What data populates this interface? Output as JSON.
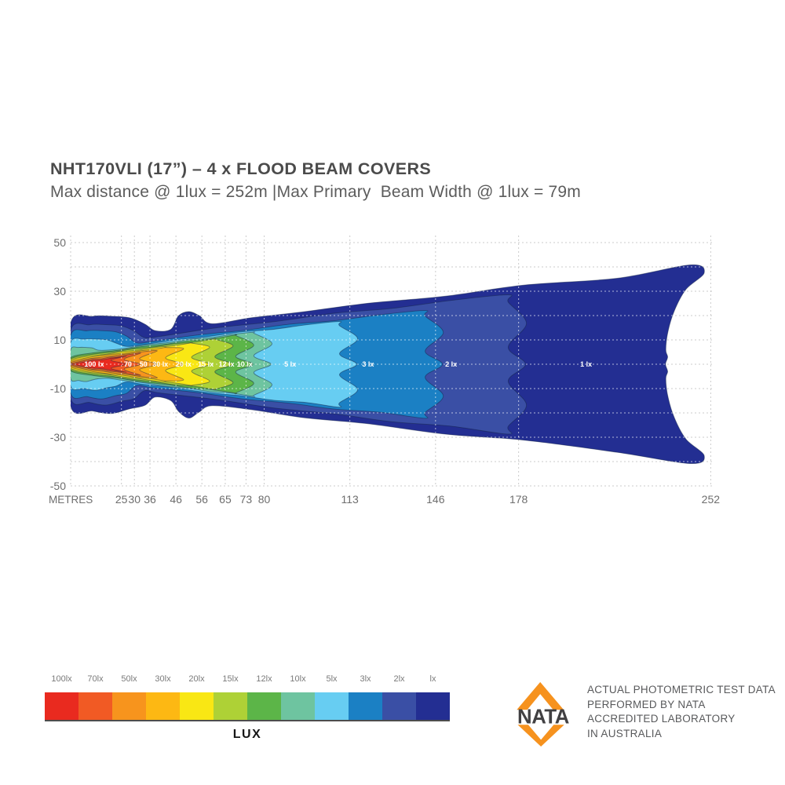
{
  "header": {
    "title": "NHT170VLI (17”) – 4 x FLOOD BEAM COVERS",
    "subtitle": "Max distance @ 1lux = 252m |Max Primary  Beam Width @ 1lux = 79m"
  },
  "chart_data": {
    "type": "area",
    "subtype": "isolux-beam-contour-map",
    "title": "NHT170VLI (17in) 4 x flood beam covers - photometric beam pattern",
    "xlabel": "METRES",
    "x_ticks": [
      25,
      30,
      36,
      46,
      56,
      65,
      73,
      80,
      113,
      146,
      178,
      252
    ],
    "y_ticks": [
      50,
      30,
      10,
      -10,
      -30,
      -50
    ],
    "ylim": [
      -50,
      50
    ],
    "xlim": [
      0,
      252
    ],
    "grid_step_y_m": 10,
    "grid": true,
    "stats": {
      "max_distance_at_1lux_m": 252,
      "max_primary_beam_width_at_1lux_m": 79
    },
    "contours": [
      {
        "lux": 100,
        "label": "100 lx",
        "legend_label": "100lx",
        "color": "#e92a1f",
        "max_distance_m": 25,
        "end_half_width_m": 7,
        "label_at_m": 14.5
      },
      {
        "lux": 70,
        "label": "70",
        "legend_label": "70lx",
        "color": "#f15a24",
        "max_distance_m": 30,
        "end_half_width_m": 8.5,
        "label_at_m": 27.5
      },
      {
        "lux": 50,
        "label": "50",
        "legend_label": "50lx",
        "color": "#f7941d",
        "max_distance_m": 36,
        "end_half_width_m": 9.5,
        "label_at_m": 33.5
      },
      {
        "lux": 30,
        "label": "30 lx",
        "legend_label": "30lx",
        "color": "#fdb813",
        "max_distance_m": 46,
        "end_half_width_m": 11,
        "label_at_m": 40
      },
      {
        "lux": 20,
        "label": "20 lx",
        "legend_label": "20lx",
        "color": "#f9e714",
        "max_distance_m": 56,
        "end_half_width_m": 12,
        "label_at_m": 49
      },
      {
        "lux": 15,
        "label": "15 lx",
        "legend_label": "15lx",
        "color": "#aed136",
        "max_distance_m": 65,
        "end_half_width_m": 13,
        "label_at_m": 57.5
      },
      {
        "lux": 12,
        "label": "12 lx",
        "legend_label": "12lx",
        "color": "#5cb548",
        "max_distance_m": 73,
        "end_half_width_m": 13.5,
        "label_at_m": 65.5
      },
      {
        "lux": 10,
        "label": "10 lx",
        "legend_label": "10lx",
        "color": "#6ec4a0",
        "max_distance_m": 80,
        "end_half_width_m": 14.5,
        "label_at_m": 72.5,
        "near_field_blob": {
          "length_m": 16,
          "half_width_m": 7
        }
      },
      {
        "lux": 5,
        "label": "5 lx",
        "legend_label": "5lx",
        "color": "#67cdf2",
        "max_distance_m": 113,
        "end_half_width_m": 18,
        "label_at_m": 90,
        "near_field_blob": {
          "length_m": 23,
          "half_width_m": 10.5
        }
      },
      {
        "lux": 3,
        "label": "3 lx",
        "legend_label": "3lx",
        "color": "#1b80c4",
        "max_distance_m": 146,
        "end_half_width_m": 22.5,
        "label_at_m": 120,
        "near_field_blob": {
          "length_m": 27,
          "half_width_m": 14
        }
      },
      {
        "lux": 2,
        "label": "2 lx",
        "legend_label": "2lx",
        "color": "#3a4fa5",
        "max_distance_m": 178,
        "end_half_width_m": 29,
        "label_at_m": 152,
        "near_field_blob": {
          "length_m": 30,
          "half_width_m": 16.5
        }
      },
      {
        "lux": 1,
        "label": "1 lx",
        "legend_label": "lx",
        "color": "#232e92",
        "max_distance_m": 252,
        "end_half_width_m": 40,
        "label_at_m": 204,
        "near_field_blob": {
          "length_m": 34,
          "half_width_m": 20
        }
      }
    ]
  },
  "legend": {
    "title": "LUX"
  },
  "nata": {
    "logo_text": "NATA",
    "logo_color": "#f6921e",
    "logo_text_color": "#414042",
    "lines": [
      "ACTUAL PHOTOMETRIC TEST DATA",
      "PERFORMED BY NATA",
      "ACCREDITED LABORATORY",
      "IN AUSTRALIA"
    ]
  }
}
